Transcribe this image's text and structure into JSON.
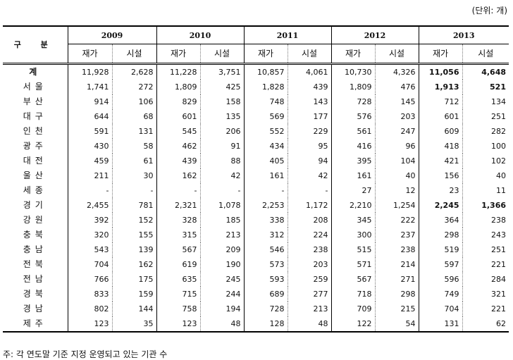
{
  "unit_label": "(단위: 개)",
  "header": {
    "region_label": "구 분",
    "years": [
      "2009",
      "2010",
      "2011",
      "2012",
      "2013"
    ],
    "sub_labels": [
      "재가",
      "시설"
    ]
  },
  "rows": [
    {
      "region": "계",
      "values": [
        "11,928",
        "2,628",
        "11,228",
        "3,751",
        "10,857",
        "4,061",
        "10,730",
        "4,326",
        "11,056",
        "4,648"
      ],
      "bold_2013": true
    },
    {
      "region": "서울",
      "values": [
        "1,741",
        "272",
        "1,809",
        "425",
        "1,828",
        "439",
        "1,809",
        "476",
        "1,913",
        "521"
      ],
      "bold_2013": true
    },
    {
      "region": "부산",
      "values": [
        "914",
        "106",
        "829",
        "158",
        "748",
        "143",
        "728",
        "145",
        "712",
        "134"
      ],
      "bold_2013": false
    },
    {
      "region": "대구",
      "values": [
        "644",
        "68",
        "601",
        "135",
        "569",
        "177",
        "576",
        "203",
        "601",
        "251"
      ],
      "bold_2013": false
    },
    {
      "region": "인천",
      "values": [
        "591",
        "131",
        "545",
        "206",
        "552",
        "229",
        "561",
        "247",
        "609",
        "282"
      ],
      "bold_2013": false
    },
    {
      "region": "광주",
      "values": [
        "430",
        "58",
        "462",
        "91",
        "434",
        "95",
        "416",
        "96",
        "418",
        "100"
      ],
      "bold_2013": false
    },
    {
      "region": "대전",
      "values": [
        "459",
        "61",
        "439",
        "88",
        "405",
        "94",
        "395",
        "104",
        "421",
        "102"
      ],
      "bold_2013": false
    },
    {
      "region": "울산",
      "values": [
        "211",
        "30",
        "162",
        "42",
        "161",
        "42",
        "161",
        "40",
        "156",
        "40"
      ],
      "bold_2013": false
    },
    {
      "region": "세종",
      "values": [
        "-",
        "-",
        "-",
        "-",
        "-",
        "-",
        "27",
        "12",
        "23",
        "11"
      ],
      "bold_2013": false
    },
    {
      "region": "경기",
      "values": [
        "2,455",
        "781",
        "2,321",
        "1,078",
        "2,253",
        "1,172",
        "2,210",
        "1,254",
        "2,245",
        "1,366"
      ],
      "bold_2013": true
    },
    {
      "region": "강원",
      "values": [
        "392",
        "152",
        "328",
        "185",
        "338",
        "208",
        "345",
        "222",
        "364",
        "238"
      ],
      "bold_2013": false
    },
    {
      "region": "충북",
      "values": [
        "320",
        "155",
        "315",
        "213",
        "312",
        "224",
        "300",
        "237",
        "298",
        "243"
      ],
      "bold_2013": false
    },
    {
      "region": "충남",
      "values": [
        "543",
        "139",
        "567",
        "209",
        "546",
        "238",
        "515",
        "238",
        "519",
        "251"
      ],
      "bold_2013": false
    },
    {
      "region": "전북",
      "values": [
        "704",
        "162",
        "619",
        "190",
        "573",
        "203",
        "571",
        "214",
        "597",
        "221"
      ],
      "bold_2013": false
    },
    {
      "region": "전남",
      "values": [
        "766",
        "175",
        "635",
        "245",
        "593",
        "259",
        "567",
        "271",
        "596",
        "284"
      ],
      "bold_2013": false
    },
    {
      "region": "경북",
      "values": [
        "833",
        "159",
        "715",
        "244",
        "689",
        "277",
        "718",
        "298",
        "749",
        "321"
      ],
      "bold_2013": false
    },
    {
      "region": "경남",
      "values": [
        "802",
        "144",
        "758",
        "194",
        "728",
        "213",
        "709",
        "215",
        "704",
        "221"
      ],
      "bold_2013": false
    },
    {
      "region": "제주",
      "values": [
        "123",
        "35",
        "123",
        "48",
        "128",
        "48",
        "122",
        "54",
        "131",
        "62"
      ],
      "bold_2013": false
    }
  ],
  "note": "주: 각 연도말 기준 지정 운영되고 있는 기관 수"
}
